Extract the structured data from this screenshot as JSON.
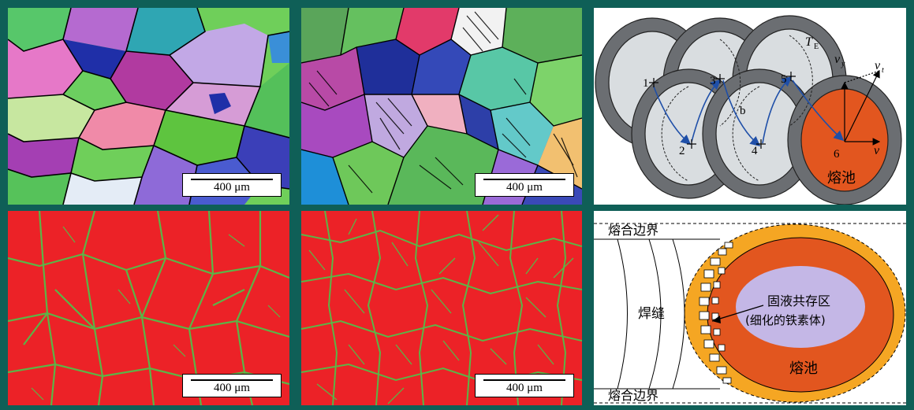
{
  "scale_bar": "400 μm",
  "panel3": {
    "labels": {
      "te": "T",
      "te_sub": "E",
      "vy": "v",
      "vy_sub": "y",
      "vt": "v",
      "vt_sub": "t",
      "vx": "v",
      "p1": "1",
      "p2": "2",
      "p3": "3",
      "p4": "4",
      "p5": "5",
      "p6": "6",
      "b": "b",
      "pool": "熔池"
    }
  },
  "panel6": {
    "boundary_top": "熔合边界",
    "boundary_bottom": "熔合边界",
    "weld": "焊缝",
    "coexist_1": "固液共存区",
    "coexist_2": "(细化的铁素体)",
    "pool": "熔池"
  },
  "colors": {
    "frame": "#0f5f57",
    "red": "#ec2227",
    "green": "#5bb547",
    "pool": "#e2561f",
    "orange": "#f5a623",
    "lavender": "#c4b7e6",
    "ring": "#6b6e72",
    "inner": "#d9dde0"
  }
}
